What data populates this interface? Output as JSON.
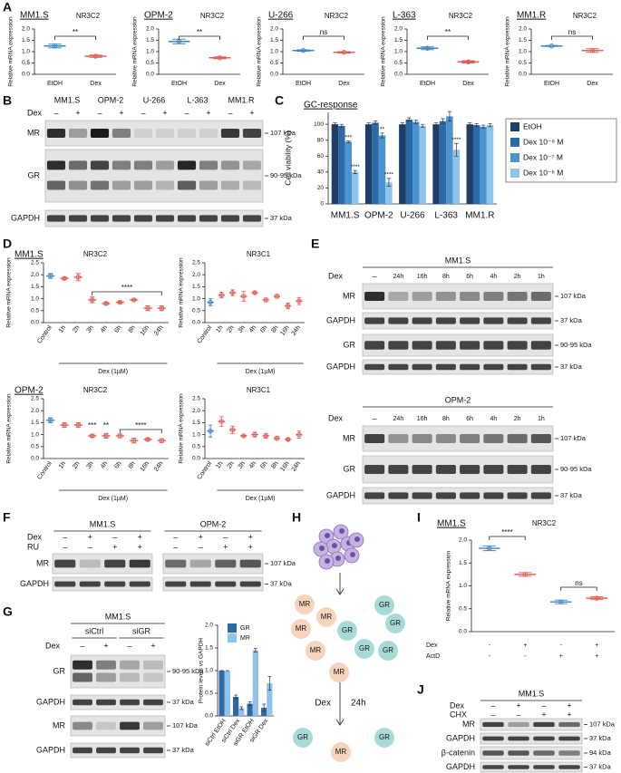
{
  "panel_labels": [
    "A",
    "B",
    "C",
    "D",
    "E",
    "F",
    "G",
    "H",
    "I",
    "J"
  ],
  "chart_data": [
    {
      "type": "dot",
      "title": "MM1.S",
      "subtitle": "NR3C2",
      "ylabel": "Relative mRNA expression",
      "categories": [
        "EtOH",
        "Dex"
      ],
      "values": [
        1.25,
        0.8
      ],
      "errors": [
        0.08,
        0.05
      ],
      "colors": [
        "#3f86c6",
        "#e0605a"
      ],
      "ylim": [
        0,
        2
      ],
      "yticks": [
        {
          "value": 0,
          "label": "0.0"
        },
        0.5,
        {
          "value": 1,
          "label": "1.0"
        },
        1.5,
        {
          "value": 2,
          "label": "2.0"
        }
      ],
      "annotations": [
        "**"
      ]
    },
    {
      "type": "dot",
      "title": "OPM-2",
      "subtitle": "NR3C2",
      "ylabel": "Relative mRNA expression",
      "categories": [
        "EtOH",
        "Dex"
      ],
      "values": [
        1.45,
        0.73
      ],
      "errors": [
        0.1,
        0.04
      ],
      "colors": [
        "#3f86c6",
        "#e0605a"
      ],
      "ylim": [
        0,
        2
      ],
      "yticks": [
        {
          "value": 0,
          "label": "0.0"
        },
        0.5,
        {
          "value": 1,
          "label": "1.0"
        },
        1.5,
        {
          "value": 2,
          "label": "2.0"
        }
      ],
      "annotations": [
        "**"
      ]
    },
    {
      "type": "dot",
      "title": "U-266",
      "subtitle": "NR3C2",
      "ylabel": "Relative mRNA expression",
      "categories": [
        "EtOH",
        "Dex"
      ],
      "values": [
        1.05,
        0.97
      ],
      "errors": [
        0.03,
        0.03
      ],
      "colors": [
        "#3f86c6",
        "#e0605a"
      ],
      "ylim": [
        0,
        2
      ],
      "yticks": [
        {
          "value": 0,
          "label": "0.0"
        },
        0.5,
        {
          "value": 1,
          "label": "1.0"
        },
        1.5,
        {
          "value": 2,
          "label": "2.0"
        }
      ],
      "annotations": [
        "ns"
      ]
    },
    {
      "type": "dot",
      "title": "L-363",
      "subtitle": "NR3C2",
      "ylabel": "Relative mRNA expression",
      "categories": [
        "EtOH",
        "Dex"
      ],
      "values": [
        1.15,
        0.55
      ],
      "errors": [
        0.06,
        0.05
      ],
      "colors": [
        "#3f86c6",
        "#e0605a"
      ],
      "ylim": [
        0,
        2
      ],
      "yticks": [
        {
          "value": 0,
          "label": "0.0"
        },
        0.5,
        {
          "value": 1,
          "label": "1.0"
        },
        1.5,
        {
          "value": 2,
          "label": "2.0"
        }
      ],
      "annotations": [
        "**"
      ]
    },
    {
      "type": "dot",
      "title": "MM1.R",
      "subtitle": "NR3C2",
      "ylabel": "Relative mRNA expression",
      "categories": [
        "EtOH",
        "Dex"
      ],
      "values": [
        1.25,
        1.05
      ],
      "errors": [
        0.02,
        0.08
      ],
      "colors": [
        "#3f86c6",
        "#e0605a"
      ],
      "ylim": [
        0,
        2
      ],
      "yticks": [
        {
          "value": 0,
          "label": "0.0"
        },
        0.5,
        {
          "value": 1,
          "label": "1.0"
        },
        1.5,
        {
          "value": 2,
          "label": "2.0"
        }
      ],
      "annotations": [
        "ns"
      ]
    },
    {
      "type": "bar",
      "title": "GC-response",
      "ylabel": "Cell viability (%)",
      "categories": [
        "MM1.S",
        "OPM-2",
        "U-266",
        "L-363",
        "MM1.R"
      ],
      "series": [
        {
          "name": "EtOH",
          "color": "#1b3f66",
          "values": [
            100,
            100,
            100,
            100,
            100
          ],
          "errors": [
            2,
            2,
            2,
            2,
            2
          ]
        },
        {
          "name": "Dex 10⁻⁸ M",
          "color": "#2c6aa6",
          "values": [
            98,
            102,
            106,
            104,
            99
          ],
          "errors": [
            2,
            2,
            2,
            3,
            2
          ]
        },
        {
          "name": "Dex 10⁻⁷ M",
          "color": "#4b93d1",
          "values": [
            78,
            86,
            103,
            110,
            97
          ],
          "errors": [
            1,
            3,
            2,
            6,
            2
          ]
        },
        {
          "name": "Dex 10⁻⁶ M",
          "color": "#8ec3ea",
          "values": [
            40,
            27,
            98,
            68,
            99
          ],
          "errors": [
            2,
            5,
            2,
            8,
            2
          ]
        }
      ],
      "ylim": [
        0,
        115
      ],
      "yticks": [
        0,
        20,
        40,
        60,
        80,
        100
      ],
      "legend": "right",
      "annotations": [
        "***",
        "****",
        "**",
        "****",
        "****"
      ]
    },
    {
      "type": "dot",
      "title": "MM1.S",
      "subtitle": "NR3C2",
      "ylabel": "Relative mRNA expression",
      "xlabel": "Dex (1µM)",
      "categories": [
        "Control",
        "1h",
        "2h",
        "3h",
        "4h",
        "6h",
        "8h",
        "16h",
        "24h"
      ],
      "values": [
        1.95,
        1.85,
        1.9,
        0.95,
        0.8,
        0.85,
        0.95,
        0.6,
        0.6
      ],
      "errors": [
        0.1,
        0.05,
        0.15,
        0.12,
        0.05,
        0.05,
        0.03,
        0.1,
        0.1
      ],
      "colors": [
        "#3f86c6",
        "#e0605a",
        "#e0605a",
        "#e0605a",
        "#e0605a",
        "#e0605a",
        "#e0605a",
        "#e0605a",
        "#e0605a"
      ],
      "ylim": [
        0,
        2.5
      ],
      "yticks": [
        {
          "value": 0,
          "label": "0.0"
        },
        0.5,
        {
          "value": 1,
          "label": "1.0"
        },
        1.5,
        {
          "value": 2,
          "label": "2.0"
        },
        2.5
      ],
      "annotations": [
        "****"
      ]
    },
    {
      "type": "dot",
      "subtitle": "NR3C1",
      "ylabel": "Relative mRNA expression",
      "xlabel": "Dex (1µM)",
      "categories": [
        "Control",
        "1h",
        "2h",
        "3h",
        "4h",
        "6h",
        "8h",
        "16h",
        "24h"
      ],
      "values": [
        0.85,
        1.15,
        1.25,
        1.1,
        1.25,
        0.95,
        1.1,
        0.7,
        0.9
      ],
      "errors": [
        0.15,
        0.12,
        0.12,
        0.2,
        0.05,
        0.08,
        0.08,
        0.12,
        0.15
      ],
      "colors": [
        "#3f86c6",
        "#e0605a",
        "#e0605a",
        "#e0605a",
        "#e0605a",
        "#e0605a",
        "#e0605a",
        "#e0605a",
        "#e0605a"
      ],
      "ylim": [
        0,
        2.5
      ],
      "yticks": [
        {
          "value": 0,
          "label": "0.0"
        },
        0.5,
        {
          "value": 1,
          "label": "1.0"
        },
        1.5,
        {
          "value": 2,
          "label": "2.0"
        },
        2.5
      ]
    },
    {
      "type": "dot",
      "title": "OPM-2",
      "subtitle": "NR3C2",
      "ylabel": "Relative mRNA expression",
      "xlabel": "Dex (1µM)",
      "categories": [
        "Control",
        "1h",
        "2h",
        "3h",
        "4h",
        "6h",
        "8h",
        "16h",
        "24h"
      ],
      "values": [
        1.6,
        1.4,
        1.4,
        0.95,
        0.95,
        0.95,
        0.75,
        0.8,
        0.75
      ],
      "errors": [
        0.1,
        0.1,
        0.1,
        0.06,
        0.1,
        0.08,
        0.1,
        0.05,
        0.08
      ],
      "colors": [
        "#3f86c6",
        "#e0605a",
        "#e0605a",
        "#e0605a",
        "#e0605a",
        "#e0605a",
        "#e0605a",
        "#e0605a",
        "#e0605a"
      ],
      "ylim": [
        0,
        2.5
      ],
      "yticks": [
        {
          "value": 0,
          "label": "0.0"
        },
        0.5,
        {
          "value": 1,
          "label": "1.0"
        },
        1.5,
        {
          "value": 2,
          "label": "2.0"
        },
        2.5
      ],
      "annotations": [
        "***",
        "**",
        "****"
      ]
    },
    {
      "type": "dot",
      "subtitle": "NR3C1",
      "ylabel": "Relative mRNA expression",
      "xlabel": "Dex (1µM)",
      "categories": [
        "Control",
        "1h",
        "2h",
        "3h",
        "4h",
        "6h",
        "8h",
        "16h",
        "24h"
      ],
      "values": [
        1.15,
        1.55,
        1.2,
        0.95,
        1.0,
        0.95,
        0.85,
        0.8,
        1.0
      ],
      "errors": [
        0.25,
        0.2,
        0.15,
        0.03,
        0.1,
        0.1,
        0.08,
        0.05,
        0.15
      ],
      "colors": [
        "#3f86c6",
        "#e0605a",
        "#e0605a",
        "#e0605a",
        "#e0605a",
        "#e0605a",
        "#e0605a",
        "#e0605a",
        "#e0605a"
      ],
      "ylim": [
        0,
        2.5
      ],
      "yticks": [
        {
          "value": 0,
          "label": "0.0"
        },
        0.5,
        {
          "value": 1,
          "label": "1.0"
        },
        1.5,
        {
          "value": 2,
          "label": "2.0"
        },
        2.5
      ]
    },
    {
      "type": "bar",
      "ylabel": "Protein levels vs GAPDH",
      "categories": [
        "siCtrl EtOH",
        "siCtrl Dex",
        "siGR EtOH",
        "siGR Dex"
      ],
      "series": [
        {
          "name": "GR",
          "color": "#2c6aa6",
          "values": [
            1,
            0.42,
            0.27,
            0.18
          ],
          "errors": [
            0,
            0.04,
            0.04,
            0.08
          ]
        },
        {
          "name": "MR",
          "color": "#8ec3ea",
          "values": [
            1,
            0.17,
            1.45,
            0.72
          ],
          "errors": [
            0,
            0.03,
            0.04,
            0.15
          ]
        }
      ],
      "ylim": [
        0,
        2
      ],
      "yticks": [
        {
          "value": 0,
          "label": "0.0"
        },
        0.5,
        {
          "value": 1,
          "label": "1.0"
        },
        1.5,
        {
          "value": 2,
          "label": "2.0"
        }
      ],
      "legend": "upper left"
    },
    {
      "type": "dot",
      "title": "MM1.S",
      "subtitle": "NR3C2",
      "ylabel": "Relative mRNA expression",
      "categories": [
        null,
        null,
        null,
        null
      ],
      "conditions": [
        {
          "name": "Dex",
          "values": [
            "-",
            "+",
            "-",
            "+"
          ]
        },
        {
          "name": "ActD",
          "values": [
            "-",
            "-",
            "+",
            "+"
          ]
        }
      ],
      "values": [
        1.82,
        1.25,
        0.65,
        0.73
      ],
      "errors": [
        0.05,
        0.04,
        0.04,
        0.03
      ],
      "colors": [
        "#3f86c6",
        "#e0605a",
        "#3f86c6",
        "#e0605a"
      ],
      "ylim": [
        0,
        2
      ],
      "yticks": [
        {
          "value": 0,
          "label": "0.0"
        },
        0.5,
        {
          "value": 1,
          "label": "1.0"
        },
        1.5,
        {
          "value": 2,
          "label": "2.0"
        }
      ],
      "annotations": [
        "****",
        "ns"
      ]
    }
  ],
  "blots": [
    {
      "groups": [
        "MM1.S",
        "OPM-2",
        "U-266",
        "L-363",
        "MM1.R"
      ],
      "conditions": [
        {
          "name": "Dex",
          "values": [
            "–",
            "+",
            "–",
            "+",
            "–",
            "+",
            "–",
            "+",
            "–",
            "+"
          ]
        }
      ],
      "rows": [
        {
          "name": "MR",
          "size": "107 kDa"
        },
        {
          "name": "GR",
          "size": "90-95 kDa"
        },
        {
          "name": "GAPDH",
          "size": "37 kDa"
        }
      ]
    },
    {
      "title": "MM1.S",
      "conditions": [
        {
          "name": "Dex",
          "values": [
            "–",
            "24h",
            "16h",
            "8h",
            "6h",
            "4h",
            "2h",
            "1h"
          ]
        }
      ],
      "rows": [
        {
          "name": "MR",
          "size": "107 kDa"
        },
        {
          "name": "GAPDH",
          "size": "37 kDa"
        },
        {
          "name": "GR",
          "size": "90-95 kDa"
        },
        {
          "name": "GAPDH",
          "size": "37 kDa"
        }
      ]
    },
    {
      "title": "OPM-2",
      "conditions": [
        {
          "name": "Dex",
          "values": [
            "–",
            "24h",
            "16h",
            "8h",
            "6h",
            "4h",
            "2h",
            "1h"
          ]
        }
      ],
      "rows": [
        {
          "name": "MR",
          "size": "107 kDa"
        },
        {
          "name": "GR",
          "size": "90-95 kDa"
        },
        {
          "name": "GAPDH",
          "size": "37 kDa"
        }
      ]
    },
    {
      "groups": [
        "MM1.S",
        "OPM-2"
      ],
      "conditions": [
        {
          "name": "Dex",
          "values": [
            "–",
            "+",
            "–",
            "+",
            "–",
            "+",
            "–",
            "+"
          ]
        },
        {
          "name": "RU",
          "values": [
            "–",
            "–",
            "+",
            "+",
            "–",
            "–",
            "+",
            "+"
          ]
        }
      ],
      "rows": [
        {
          "name": "MR",
          "size": "107 kDa"
        },
        {
          "name": "GAPDH",
          "size": "37 kDa"
        }
      ]
    },
    {
      "title": "MM1.S",
      "groups": [
        "siCtrl",
        "siGR"
      ],
      "conditions": [
        {
          "name": "Dex",
          "values": [
            "–",
            "+",
            "–",
            "+"
          ]
        }
      ],
      "rows": [
        {
          "name": "GR",
          "size": "90-95 kDa"
        },
        {
          "name": "GAPDH",
          "size": "37 kDa"
        },
        {
          "name": "MR",
          "size": "107 kDa"
        },
        {
          "name": "GAPDH",
          "size": "37 kDa"
        }
      ]
    },
    {
      "title": "MM1.S",
      "conditions": [
        {
          "name": "Dex",
          "values": [
            "–",
            "+",
            "–",
            "+"
          ]
        },
        {
          "name": "CHX",
          "values": [
            "–",
            "–",
            "+",
            "+"
          ]
        }
      ],
      "rows": [
        {
          "name": "MR",
          "size": "107 kDa"
        },
        {
          "name": "GAPDH",
          "size": "37 kDa"
        },
        {
          "name": "β-catenin",
          "size": "94 kDa"
        },
        {
          "name": "GAPDH",
          "size": "37 kDa"
        }
      ]
    }
  ],
  "diagram": {
    "before": [
      "MR",
      "MR",
      "GR",
      "MR",
      "GR",
      "GR",
      "MR",
      "GR",
      "GR",
      "MR"
    ],
    "treatment": "Dex",
    "time": "24h",
    "after": [
      "GR",
      "GR",
      "MR"
    ]
  }
}
